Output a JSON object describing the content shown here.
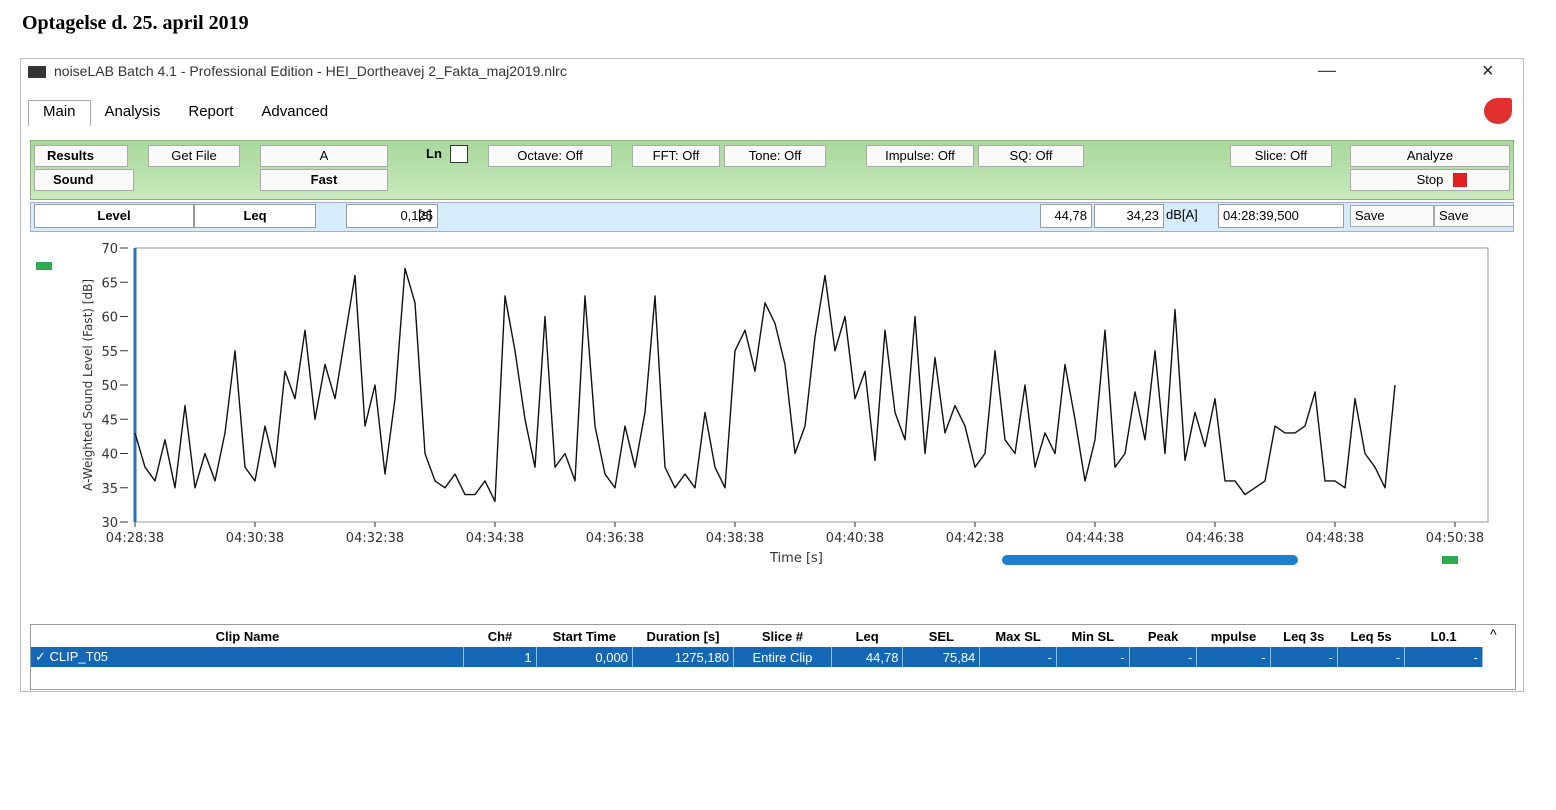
{
  "heading": "Optagelse d. 25. april 2019",
  "window": {
    "title": "noiseLAB Batch 4.1 - Professional Edition - HEI_Dortheavej 2_Fakta_maj2019.nlrc",
    "tabs": [
      "Main",
      "Analysis",
      "Report",
      "Advanced"
    ],
    "toolbar": {
      "results": "Results",
      "sound": "Sound",
      "get_file": "Get File",
      "weighting": "A",
      "time_weighting": "Fast",
      "ln": "Ln",
      "octave": "Octave: Off",
      "fft": "FFT: Off",
      "tone": "Tone: Off",
      "impulse": "Impulse: Off",
      "sq": "SQ: Off",
      "slice": "Slice: Off",
      "analyze": "Analyze",
      "stop": "Stop"
    },
    "level_bar": {
      "level": "Level",
      "leq": "Leq",
      "interval": "0,125",
      "interval_unit": "[s]",
      "value_1": "44,78",
      "value_2": "34,23",
      "unit": "dB[A]",
      "time": "04:28:39,500",
      "save_1": "Save",
      "save_2": "Save"
    },
    "table": {
      "columns": [
        "Clip Name",
        "Ch#",
        "Start Time",
        "Duration [s]",
        "Slice #",
        "Leq",
        "SEL",
        "Max SL",
        "Min SL",
        "Peak",
        "mpulse",
        "Leq 3s",
        "Leq 5s",
        "L0.1"
      ],
      "rows": [
        [
          "CLIP_T05",
          "1",
          "0,000",
          "1275,180",
          "Entire Clip",
          "44,78",
          "75,84",
          "-",
          "-",
          "-",
          "-",
          "-",
          "-",
          "-"
        ]
      ]
    }
  },
  "chart_data": {
    "type": "line",
    "y_label": "A-Weighted Sound Level (Fast) [dB]",
    "x_label": "Time [s]",
    "xlim": [
      "04:28:38",
      "04:50:38"
    ],
    "xticks": [
      "04:28:38",
      "04:30:38",
      "04:32:38",
      "04:34:38",
      "04:36:38",
      "04:38:38",
      "04:40:38",
      "04:42:38",
      "04:44:38",
      "04:46:38",
      "04:48:38",
      "04:50:38"
    ],
    "ylim": [
      30,
      70
    ],
    "yticks": [
      30,
      35,
      40,
      45,
      50,
      55,
      60,
      65,
      70
    ],
    "x": [
      "04:28:38",
      "04:28:48",
      "04:28:58",
      "04:29:08",
      "04:29:18",
      "04:29:28",
      "04:29:38",
      "04:29:48",
      "04:29:58",
      "04:30:08",
      "04:30:18",
      "04:30:28",
      "04:30:38",
      "04:30:48",
      "04:30:58",
      "04:31:08",
      "04:31:18",
      "04:31:28",
      "04:31:38",
      "04:31:48",
      "04:31:58",
      "04:32:08",
      "04:32:18",
      "04:32:28",
      "04:32:38",
      "04:32:48",
      "04:32:58",
      "04:33:08",
      "04:33:18",
      "04:33:28",
      "04:33:38",
      "04:33:48",
      "04:33:58",
      "04:34:08",
      "04:34:18",
      "04:34:28",
      "04:34:38",
      "04:34:48",
      "04:34:58",
      "04:35:08",
      "04:35:18",
      "04:35:28",
      "04:35:38",
      "04:35:48",
      "04:35:58",
      "04:36:08",
      "04:36:18",
      "04:36:28",
      "04:36:38",
      "04:36:48",
      "04:36:58",
      "04:37:08",
      "04:37:18",
      "04:37:28",
      "04:37:38",
      "04:37:48",
      "04:37:58",
      "04:38:08",
      "04:38:18",
      "04:38:28",
      "04:38:38",
      "04:38:48",
      "04:38:58",
      "04:39:08",
      "04:39:18",
      "04:39:28",
      "04:39:38",
      "04:39:48",
      "04:39:58",
      "04:40:08",
      "04:40:18",
      "04:40:28",
      "04:40:38",
      "04:40:48",
      "04:40:58",
      "04:41:08",
      "04:41:18",
      "04:41:28",
      "04:41:38",
      "04:41:48",
      "04:41:58",
      "04:42:08",
      "04:42:18",
      "04:42:28",
      "04:42:38",
      "04:42:48",
      "04:42:58",
      "04:43:08",
      "04:43:18",
      "04:43:28",
      "04:43:38",
      "04:43:48",
      "04:43:58",
      "04:44:08",
      "04:44:18",
      "04:44:28",
      "04:44:38",
      "04:44:48",
      "04:44:58",
      "04:45:08",
      "04:45:18",
      "04:45:28",
      "04:45:38",
      "04:45:48",
      "04:45:58",
      "04:46:08",
      "04:46:18",
      "04:46:28",
      "04:46:38",
      "04:46:48",
      "04:46:58",
      "04:47:08",
      "04:47:18",
      "04:47:28",
      "04:47:38",
      "04:47:48",
      "04:47:58",
      "04:48:08",
      "04:48:18",
      "04:48:28",
      "04:48:38",
      "04:48:48",
      "04:48:58",
      "04:49:08",
      "04:49:18",
      "04:49:28",
      "04:49:38"
    ],
    "values": [
      43,
      38,
      36,
      42,
      35,
      47,
      35,
      40,
      36,
      43,
      55,
      38,
      36,
      44,
      38,
      52,
      48,
      58,
      45,
      53,
      48,
      57,
      66,
      44,
      50,
      37,
      48,
      67,
      62,
      40,
      36,
      35,
      37,
      34,
      34,
      36,
      33,
      63,
      55,
      45,
      38,
      60,
      38,
      40,
      36,
      63,
      44,
      37,
      35,
      44,
      38,
      46,
      63,
      38,
      35,
      37,
      35,
      46,
      38,
      35,
      55,
      58,
      52,
      62,
      59,
      53,
      40,
      44,
      57,
      66,
      55,
      60,
      48,
      52,
      39,
      58,
      46,
      42,
      60,
      40,
      54,
      43,
      47,
      44,
      38,
      40,
      55,
      42,
      40,
      50,
      38,
      43,
      40,
      53,
      45,
      36,
      42,
      58,
      38,
      40,
      49,
      42,
      55,
      40,
      61,
      39,
      46,
      41,
      48,
      36,
      36,
      34,
      35,
      36,
      44,
      43,
      43,
      44,
      49,
      36,
      36,
      35,
      48,
      40,
      38,
      35,
      50
    ],
    "color": "#111111",
    "grid": false
  }
}
